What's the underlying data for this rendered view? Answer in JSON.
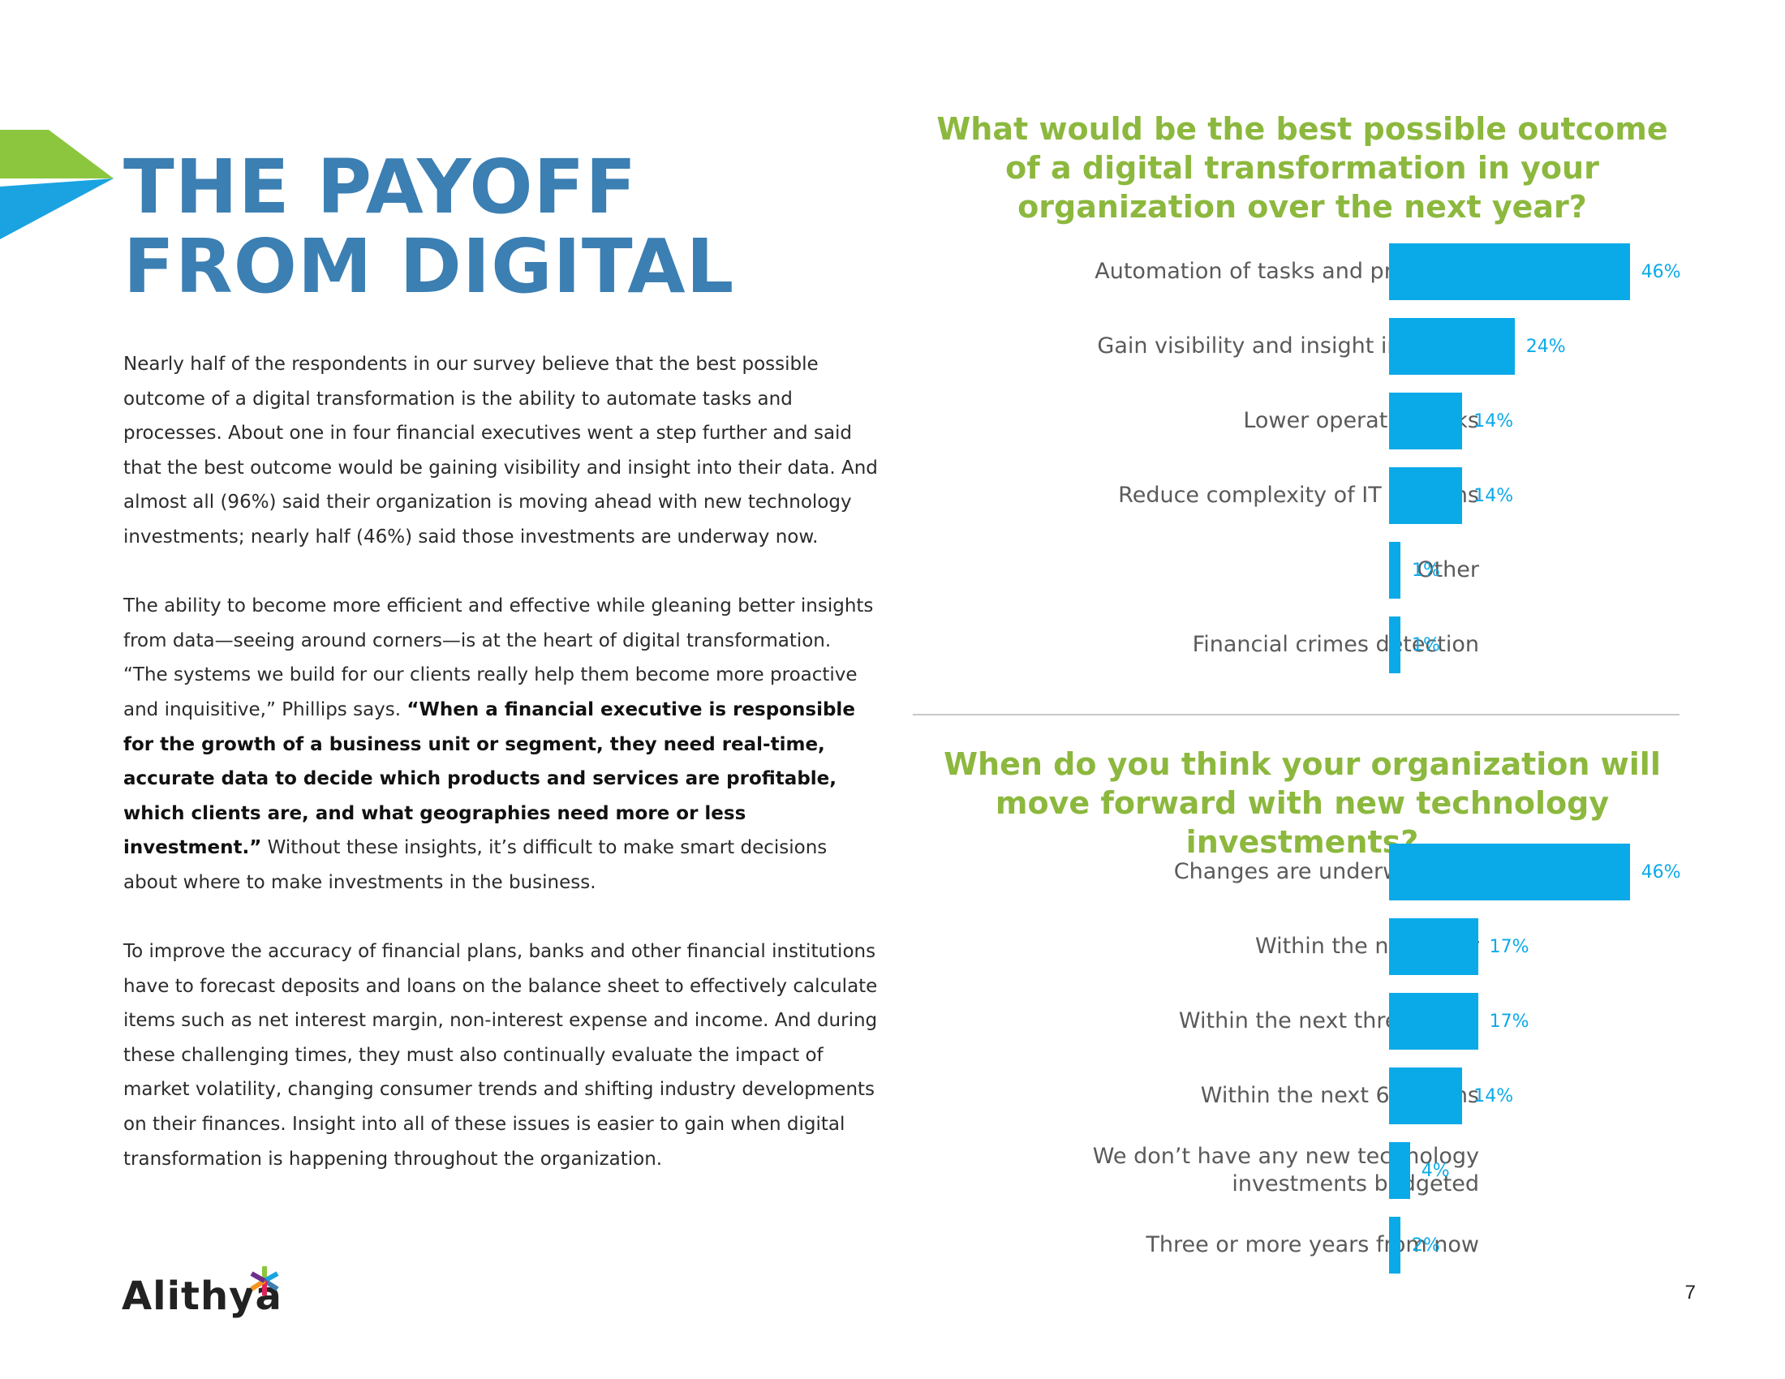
{
  "title": "THE PAYOFF\nFROM DIGITAL",
  "colors": {
    "title_blue": "#3b7fb3",
    "accent_green": "#8cb83e",
    "bar_blue": "#0aaae8"
  },
  "icons": {
    "chevron": "chevron-arrow-icon",
    "logo_mark": "asterisk-logo-icon"
  },
  "body": {
    "p1": "Nearly half of the respondents in our survey believe that the best possible outcome of a digital transformation is the ability to automate tasks and processes. About one in four financial executives went a step further and said that the best outcome would be gaining visibility and insight into their data. And almost all (96%) said their organization is moving ahead with new technology investments; nearly half (46%) said those investments are underway now.",
    "p2_start": "The ability to become more efficient and effective while gleaning better insights from data—seeing around corners—is at the heart of digital transformation. “The systems we build for our clients really help them become more proactive and inquisitive,” Phillips says. ",
    "p2_bold": "“When a financial executive is responsible for the growth of a business unit or segment, they need real-time, accurate data to decide which products and services are profitable, which clients are, and what geographies need more or less investment.”",
    "p2_end": " Without these insights, it’s difficult to make smart decisions about where to make investments in the business.",
    "p3": "To improve the accuracy of financial plans, banks and other financial institutions have to forecast deposits and loans on the balance sheet to effectively calculate items such as net interest margin, non-interest expense and income. And during these challenging times, they must also continually evaluate the impact of market volatility, changing consumer trends and shifting industry developments on their finances. Insight into all of these issues is easier to gain when digital transformation is happening throughout the organization."
  },
  "logo": {
    "text": "Alithya"
  },
  "page_number": "7",
  "chart_data": [
    {
      "type": "bar",
      "orientation": "horizontal",
      "title": "What would be the best possible outcome of a digital transformation in your organization over the next year?",
      "categories": [
        "Automation of tasks and processes",
        "Gain visibility and insight into data",
        "Lower operating risks",
        "Reduce complexity of IT systems",
        "Other",
        "Financial crimes detection"
      ],
      "values": [
        46,
        24,
        14,
        14,
        1,
        1
      ],
      "value_labels": [
        "46%",
        "24%",
        "14%",
        "14%",
        "1%",
        "1%"
      ],
      "grid": false
    },
    {
      "type": "bar",
      "orientation": "horizontal",
      "title": "When do you think your organization will move forward with new technology investments?",
      "categories": [
        "Changes are underway now",
        "Within the next year",
        "Within the next three years",
        "Within the next 6 months",
        "We don’t have any new technology investments budgeted",
        "Three or more years from now"
      ],
      "values": [
        46,
        17,
        17,
        14,
        4,
        2
      ],
      "value_labels": [
        "46%",
        "17%",
        "17%",
        "14%",
        "4%",
        "2%"
      ],
      "grid": false
    }
  ]
}
